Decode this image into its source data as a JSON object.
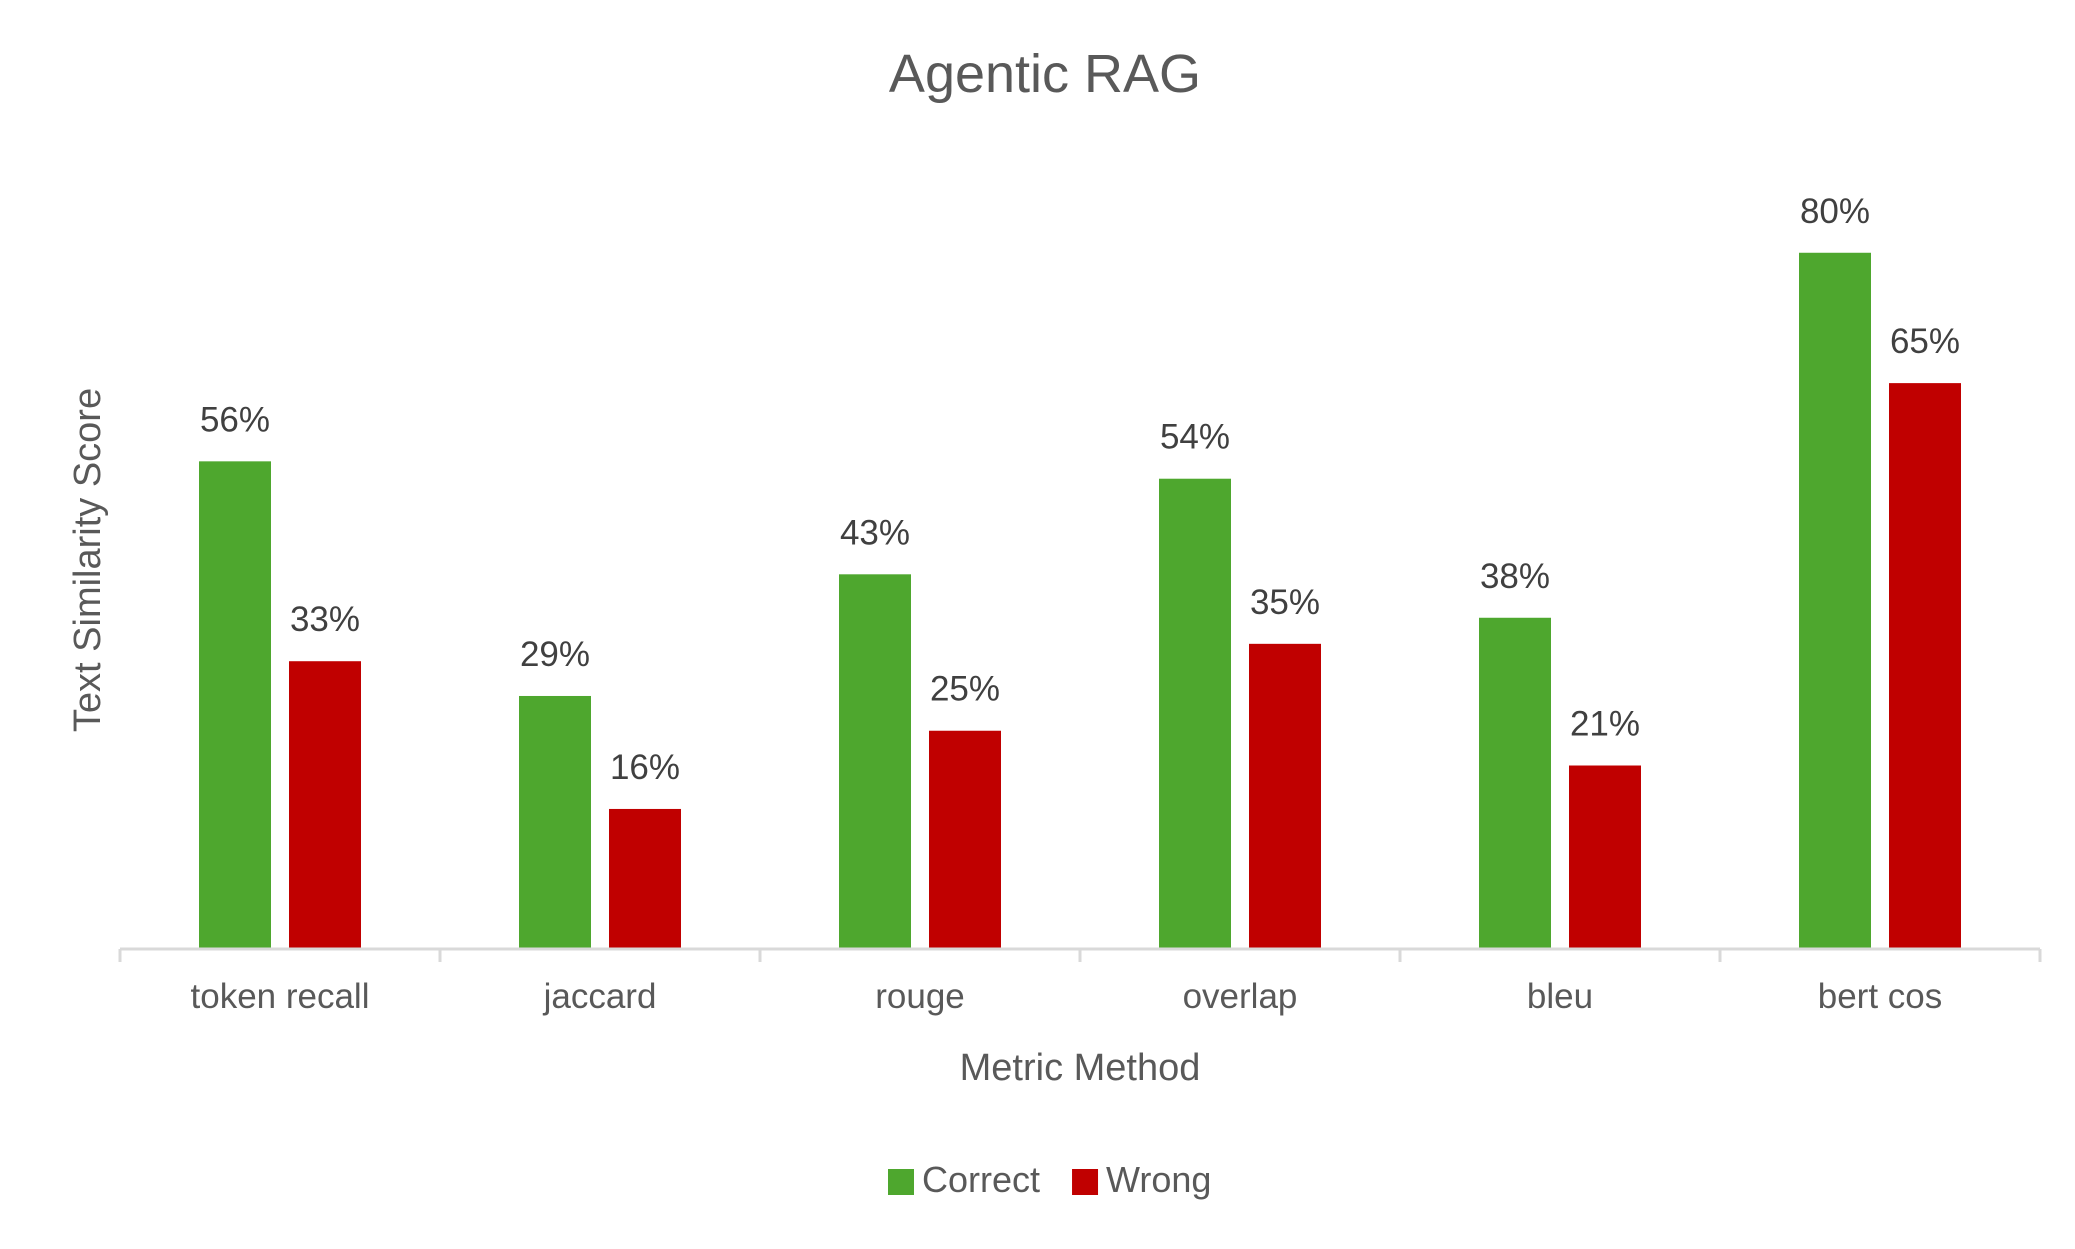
{
  "chart_data": {
    "type": "bar",
    "title": "Agentic RAG",
    "xlabel": "Metric Method",
    "ylabel": "Text Similarity Score",
    "categories": [
      "token recall",
      "jaccard",
      "rouge",
      "overlap",
      "bleu",
      "bert cos"
    ],
    "series": [
      {
        "name": "Correct",
        "color": "#4ea72e",
        "values": [
          0.56,
          0.29,
          0.43,
          0.54,
          0.38,
          0.8
        ],
        "labels": [
          "56%",
          "29%",
          "43%",
          "54%",
          "38%",
          "80%"
        ]
      },
      {
        "name": "Wrong",
        "color": "#c00000",
        "values": [
          0.33,
          0.16,
          0.25,
          0.35,
          0.21,
          0.65
        ],
        "labels": [
          "33%",
          "16%",
          "25%",
          "35%",
          "21%",
          "65%"
        ]
      }
    ],
    "ylim": [
      0,
      0.84
    ],
    "grid": false,
    "legend": "bottom"
  }
}
